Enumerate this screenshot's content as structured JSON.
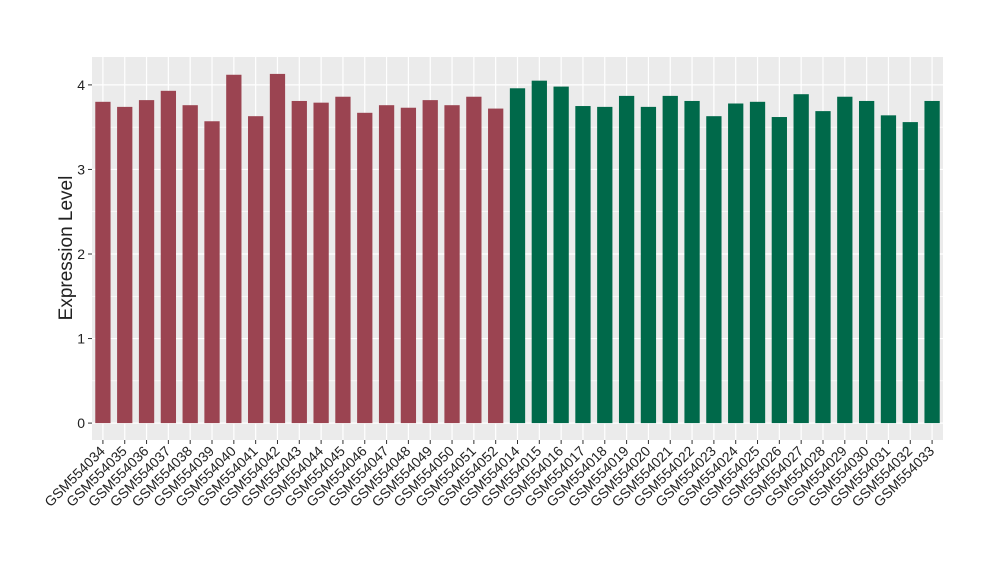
{
  "chart_data": {
    "type": "bar",
    "y_label": "Expression Level",
    "categories": [
      "GSM554034",
      "GSM554035",
      "GSM554036",
      "GSM554037",
      "GSM554038",
      "GSM554039",
      "GSM554040",
      "GSM554041",
      "GSM554042",
      "GSM554043",
      "GSM554044",
      "GSM554045",
      "GSM554046",
      "GSM554047",
      "GSM554048",
      "GSM554049",
      "GSM554050",
      "GSM554051",
      "GSM554052",
      "GSM554014",
      "GSM554015",
      "GSM554016",
      "GSM554017",
      "GSM554018",
      "GSM554019",
      "GSM554020",
      "GSM554021",
      "GSM554022",
      "GSM554023",
      "GSM554024",
      "GSM554025",
      "GSM554026",
      "GSM554027",
      "GSM554028",
      "GSM554029",
      "GSM554030",
      "GSM554031",
      "GSM554032",
      "GSM554033"
    ],
    "values": [
      3.8,
      3.74,
      3.82,
      3.93,
      3.76,
      3.57,
      4.12,
      3.63,
      4.13,
      3.81,
      3.79,
      3.86,
      3.67,
      3.76,
      3.73,
      3.82,
      3.76,
      3.86,
      3.72,
      3.96,
      4.05,
      3.98,
      3.75,
      3.74,
      3.87,
      3.74,
      3.87,
      3.81,
      3.63,
      3.78,
      3.8,
      3.62,
      3.89,
      3.69,
      3.86,
      3.81,
      3.64,
      3.56,
      3.81
    ],
    "colors": [
      "#9b4451",
      "#9b4451",
      "#9b4451",
      "#9b4451",
      "#9b4451",
      "#9b4451",
      "#9b4451",
      "#9b4451",
      "#9b4451",
      "#9b4451",
      "#9b4451",
      "#9b4451",
      "#9b4451",
      "#9b4451",
      "#9b4451",
      "#9b4451",
      "#9b4451",
      "#9b4451",
      "#9b4451",
      "#00694a",
      "#00694a",
      "#00694a",
      "#00694a",
      "#00694a",
      "#00694a",
      "#00694a",
      "#00694a",
      "#00694a",
      "#00694a",
      "#00694a",
      "#00694a",
      "#00694a",
      "#00694a",
      "#00694a",
      "#00694a",
      "#00694a",
      "#00694a",
      "#00694a",
      "#00694a"
    ],
    "ylim": [
      -0.2,
      4.33
    ],
    "yticks": [
      0,
      1,
      2,
      3,
      4
    ],
    "grid": true
  }
}
